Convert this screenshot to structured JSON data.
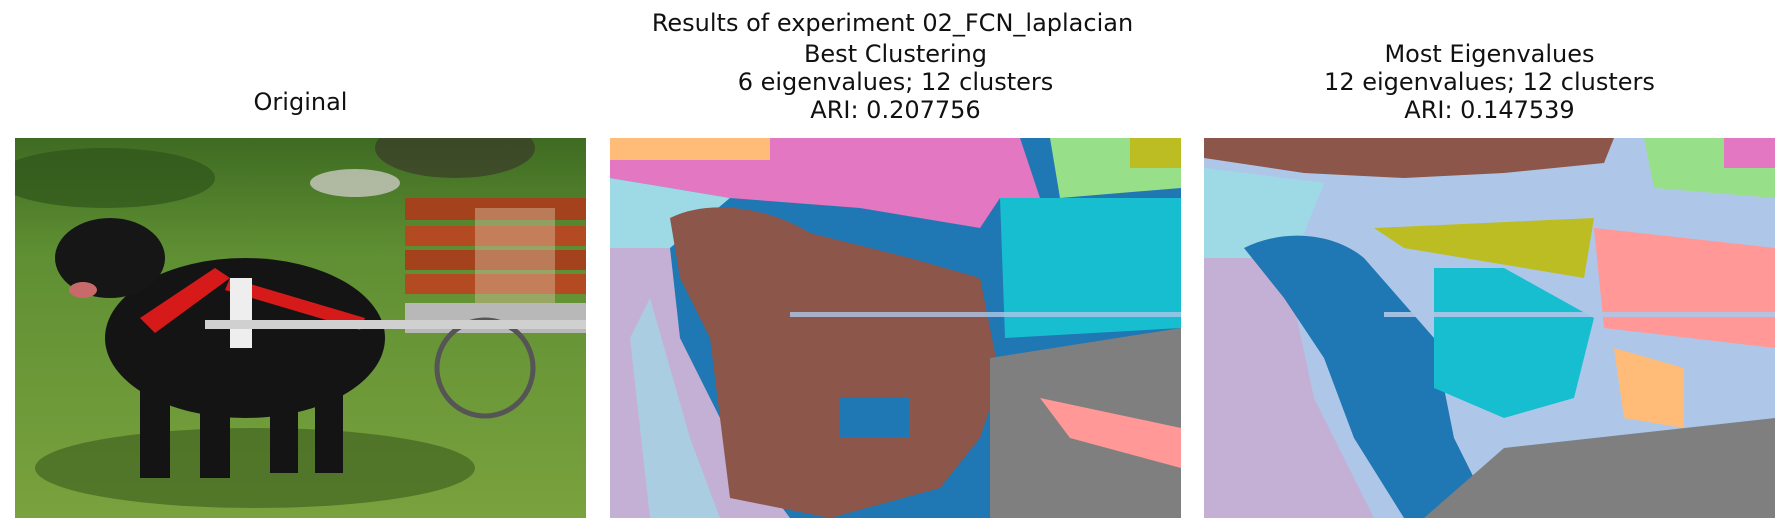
{
  "suptitle": "Results of experiment 02_FCN_laplacian",
  "panels": [
    {
      "lines": [
        "Original"
      ]
    },
    {
      "lines": [
        "Best Clustering",
        "6 eigenvalues; 12 clusters",
        "ARI: 0.207756"
      ]
    },
    {
      "lines": [
        "Most Eigenvalues",
        "12 eigenvalues; 12 clusters",
        "ARI: 0.147539"
      ]
    }
  ],
  "palette": {
    "brown": "#8c564b",
    "blue": "#1f77b4",
    "lightblue": "#aec7e8",
    "cyan": "#17becf",
    "lightcyan": "#9edae5",
    "pink": "#e377c2",
    "salmon": "#ff9896",
    "orange": "#ffbb78",
    "lightgreen": "#98df8a",
    "olive": "#bcbd22",
    "gray": "#7f7f7f",
    "lavender": "#c5b0d5"
  }
}
